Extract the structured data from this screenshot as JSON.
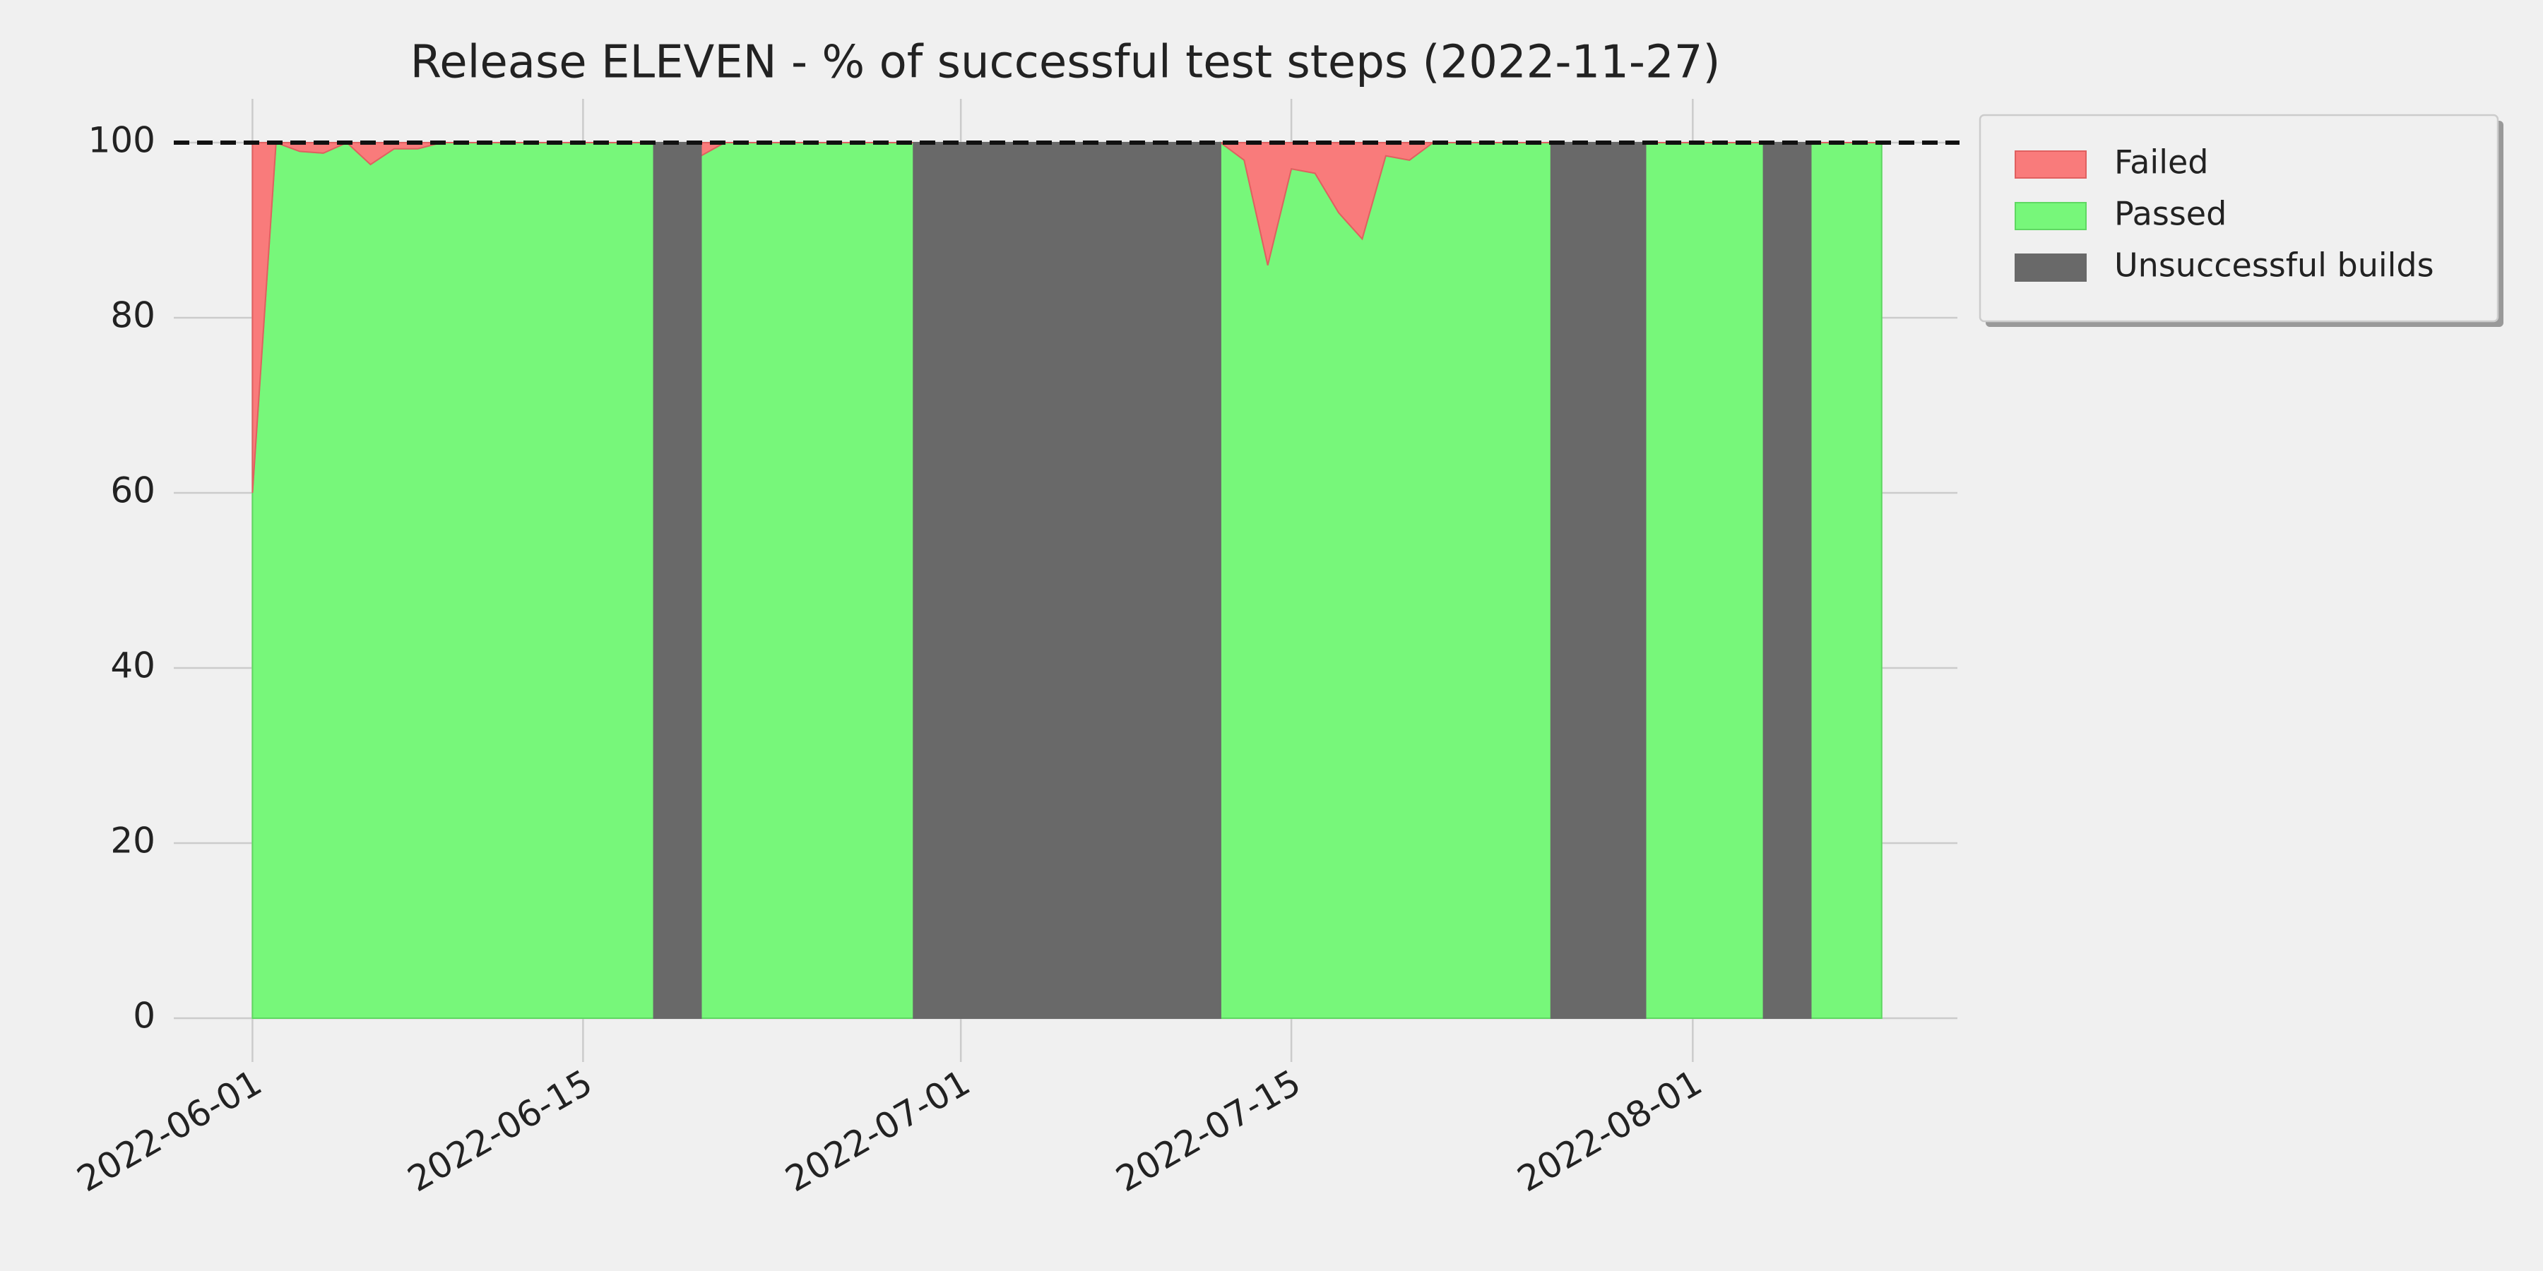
{
  "chart_data": {
    "type": "area",
    "title": "Release ELEVEN - % of successful test steps (2022-11-27)",
    "x": [
      "2022-06-01",
      "2022-06-02",
      "2022-06-03",
      "2022-06-04",
      "2022-06-05",
      "2022-06-06",
      "2022-06-07",
      "2022-06-08",
      "2022-06-09",
      "2022-06-10",
      "2022-06-11",
      "2022-06-12",
      "2022-06-13",
      "2022-06-14",
      "2022-06-15",
      "2022-06-16",
      "2022-06-17",
      "2022-06-18",
      "2022-06-19",
      "2022-06-20",
      "2022-06-21",
      "2022-06-22",
      "2022-06-23",
      "2022-06-24",
      "2022-06-25",
      "2022-06-26",
      "2022-06-27",
      "2022-06-28",
      "2022-06-29",
      "2022-06-30",
      "2022-07-01",
      "2022-07-02",
      "2022-07-03",
      "2022-07-04",
      "2022-07-05",
      "2022-07-06",
      "2022-07-07",
      "2022-07-08",
      "2022-07-09",
      "2022-07-10",
      "2022-07-11",
      "2022-07-12",
      "2022-07-13",
      "2022-07-14",
      "2022-07-15",
      "2022-07-16",
      "2022-07-17",
      "2022-07-18",
      "2022-07-19",
      "2022-07-20",
      "2022-07-21",
      "2022-07-22",
      "2022-07-23",
      "2022-07-24",
      "2022-07-25",
      "2022-07-26",
      "2022-07-27",
      "2022-07-28",
      "2022-07-29",
      "2022-07-30",
      "2022-07-31",
      "2022-08-01",
      "2022-08-02",
      "2022-08-03",
      "2022-08-04",
      "2022-08-05",
      "2022-08-06",
      "2022-08-07",
      "2022-08-08",
      "2022-08-09"
    ],
    "series": [
      {
        "name": "Failed",
        "color": "#f97b7b",
        "stacked_on": "Passed",
        "values": [
          40,
          0,
          1,
          1.2,
          0,
          2.5,
          0.7,
          0.7,
          0,
          0,
          0,
          0,
          0,
          0,
          0,
          0,
          0,
          0,
          null,
          1.5,
          0,
          0,
          0,
          0,
          0,
          0,
          0,
          0,
          0,
          null,
          null,
          null,
          null,
          null,
          null,
          null,
          null,
          null,
          null,
          null,
          null,
          0,
          2,
          14,
          3,
          3.5,
          8,
          11,
          1.5,
          2,
          0,
          0,
          0,
          0,
          0,
          0,
          null,
          null,
          null,
          0,
          0,
          0,
          0,
          0,
          0,
          null,
          0,
          0,
          0,
          0
        ]
      },
      {
        "name": "Passed",
        "color": "#77f77a",
        "values": [
          60,
          100,
          99,
          98.8,
          100,
          97.5,
          99.3,
          99.3,
          100,
          100,
          100,
          100,
          100,
          100,
          100,
          100,
          100,
          100,
          null,
          98.5,
          100,
          100,
          100,
          100,
          100,
          100,
          100,
          100,
          100,
          null,
          null,
          null,
          null,
          null,
          null,
          null,
          null,
          null,
          null,
          null,
          null,
          100,
          98,
          86,
          97,
          96.5,
          92,
          89,
          98.5,
          98,
          100,
          100,
          100,
          100,
          100,
          100,
          null,
          null,
          null,
          100,
          100,
          100,
          100,
          100,
          100,
          null,
          100,
          100,
          100,
          100
        ]
      },
      {
        "name": "Unsuccessful builds",
        "color": "#696969",
        "values": [
          null,
          null,
          null,
          null,
          null,
          null,
          null,
          null,
          null,
          null,
          null,
          null,
          null,
          null,
          null,
          null,
          null,
          100,
          100,
          100,
          null,
          null,
          null,
          null,
          null,
          null,
          null,
          null,
          100,
          100,
          100,
          100,
          100,
          100,
          100,
          100,
          100,
          100,
          100,
          100,
          100,
          100,
          null,
          null,
          null,
          null,
          null,
          null,
          null,
          null,
          null,
          null,
          null,
          null,
          null,
          100,
          100,
          100,
          100,
          100,
          null,
          null,
          null,
          null,
          100,
          100,
          100,
          null,
          null,
          null
        ]
      }
    ],
    "reference_line": 100,
    "xlim": [
      "2022-05-28T16:00:00Z",
      "2022-08-12T05:00:00Z"
    ],
    "xticks": [
      "2022-06-01",
      "2022-06-15",
      "2022-07-01",
      "2022-07-15",
      "2022-08-01"
    ],
    "ylim": [
      -5,
      105
    ],
    "yticks": [
      0,
      20,
      40,
      60,
      80,
      100
    ],
    "grid": true,
    "legend": "outside upper right"
  }
}
